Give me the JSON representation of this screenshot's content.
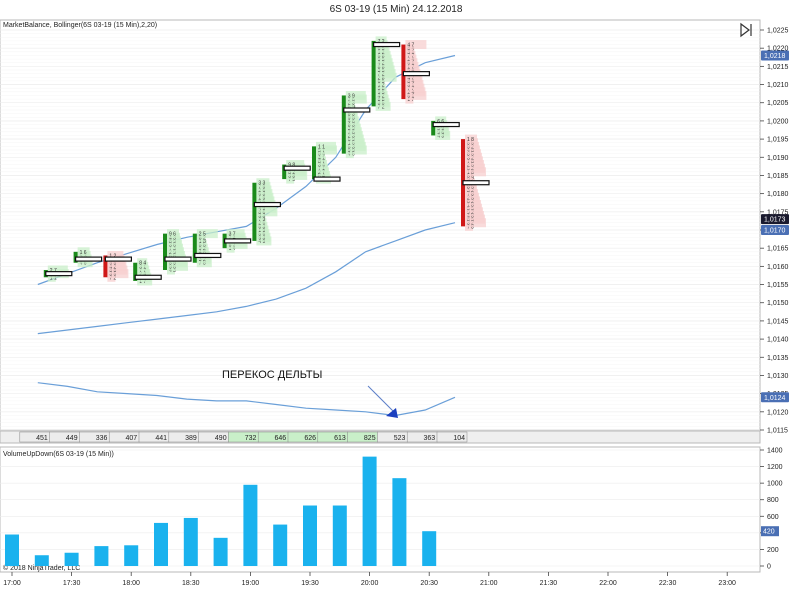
{
  "window": {
    "title": "6S 03-19 (15 Min)  24.12.2018"
  },
  "indicators": {
    "main_label": "MarketBalance, Bollinger(6S 03-19 (15 Min),2,20)",
    "volume_label": "VolumeUpDown(6S 03-19 (15 Min))"
  },
  "copyright": "© 2018 NinjaTrader, LLC",
  "annotation": "ПЕРЕКОС ДЕЛЬТЫ",
  "colors": {
    "up": "#1a8a1a",
    "down": "#d01818",
    "band": "#6a9fd8",
    "volume": "#1ab2ee",
    "price_badge": "#4a6fb4",
    "last_price_badge": "#1a1a2e"
  },
  "chart_data": [
    {
      "type": "candlestick",
      "x": [
        "17:15",
        "17:30",
        "17:45",
        "18:00",
        "18:15",
        "18:30",
        "18:45",
        "19:00",
        "19:15",
        "19:30",
        "19:45",
        "20:00",
        "20:15",
        "20:30",
        "20:45"
      ],
      "open": [
        1.0157,
        1.0163,
        1.0162,
        1.0159,
        1.0162,
        1.0163,
        1.0167,
        1.0176,
        1.0186,
        1.019,
        1.0196,
        1.0203,
        1.0214,
        1.0198,
        1.0194
      ],
      "high": [
        1.0159,
        1.0164,
        1.0163,
        1.0161,
        1.0169,
        1.0169,
        1.0169,
        1.0183,
        1.0188,
        1.0193,
        1.0207,
        1.0222,
        1.0221,
        1.02,
        1.0195
      ],
      "low": [
        1.0157,
        1.0161,
        1.0157,
        1.0156,
        1.0159,
        1.0161,
        1.0165,
        1.0167,
        1.0184,
        1.0184,
        1.0191,
        1.0204,
        1.0206,
        1.0196,
        1.0171
      ],
      "close": [
        1.0159,
        1.0164,
        1.0157,
        1.0161,
        1.0169,
        1.0166,
        1.0169,
        1.0183,
        1.0188,
        1.0193,
        1.0207,
        1.0222,
        1.0206,
        1.0198,
        1.0171
      ],
      "poc": [
        1.0158,
        1.0162,
        1.0162,
        1.0157,
        1.0162,
        1.0163,
        1.0167,
        1.0177,
        1.0187,
        1.0184,
        1.0203,
        1.0221,
        1.0213,
        1.0199,
        1.0183
      ],
      "bollinger": {
        "period": 20,
        "std": 2,
        "upper": [
          1.0155,
          1.0158,
          1.0161,
          1.01635,
          1.0166,
          1.0168,
          1.01695,
          1.0171,
          1.0176,
          1.0182,
          1.019,
          1.0203,
          1.0212,
          1.0216,
          1.0218
        ],
        "middle": [
          1.01415,
          1.01425,
          1.01435,
          1.01445,
          1.01455,
          1.01465,
          1.01475,
          1.0149,
          1.0151,
          1.0154,
          1.01585,
          1.0164,
          1.0167,
          1.017,
          1.0172
        ],
        "lower": [
          1.0128,
          1.0127,
          1.01255,
          1.0125,
          1.01245,
          1.01235,
          1.0123,
          1.0123,
          1.0122,
          1.0121,
          1.01205,
          1.012,
          1.0119,
          1.01205,
          1.0124
        ]
      },
      "delta_totals": [
        451,
        449,
        336,
        407,
        441,
        389,
        490,
        732,
        646,
        626,
        613,
        825,
        523,
        363,
        104
      ],
      "y_ticks": [
        "1,0225",
        "1,0220",
        "1,0215",
        "1,0210",
        "1,0205",
        "1,0200",
        "1,0195",
        "1,0190",
        "1,0185",
        "1,0180",
        "1,0175",
        "1,0170",
        "1,0165",
        "1,0160",
        "1,0155",
        "1,0150",
        "1,0145",
        "1,0140",
        "1,0135",
        "1,0130",
        "1,0125",
        "1,0120",
        "1,0115"
      ],
      "price_badges": [
        "1,0218",
        "1,0173",
        "1,0170",
        "1,0124"
      ],
      "ylim": [
        1.0113,
        1.0227
      ]
    },
    {
      "type": "bar",
      "x": [
        "17:00",
        "17:15",
        "17:30",
        "17:45",
        "18:00",
        "18:15",
        "18:30",
        "18:45",
        "19:00",
        "19:15",
        "19:30",
        "19:45",
        "20:00",
        "20:15",
        "20:30"
      ],
      "values": [
        380,
        130,
        160,
        240,
        250,
        520,
        580,
        340,
        980,
        500,
        730,
        730,
        1320,
        1060,
        420
      ],
      "y_ticks": [
        "1400",
        "1200",
        "1000",
        "800",
        "600",
        "400",
        "200",
        "0"
      ],
      "badge": "420",
      "ylim": [
        0,
        1420
      ]
    }
  ],
  "x_axis": {
    "labels": [
      "17:00",
      "17:30",
      "18:00",
      "18:30",
      "19:00",
      "19:30",
      "20:00",
      "20:30",
      "21:00",
      "21:30",
      "22:00",
      "22:30",
      "23:00"
    ]
  }
}
